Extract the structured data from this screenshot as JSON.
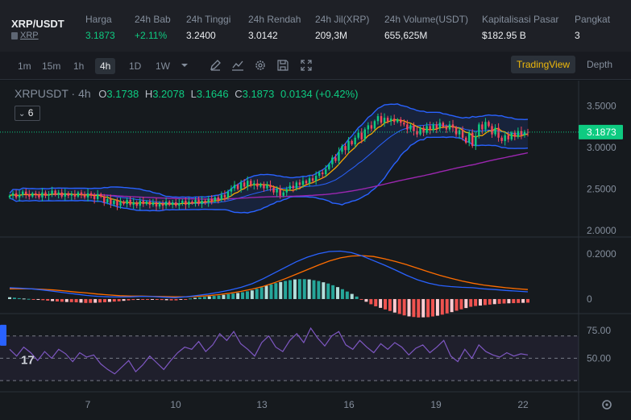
{
  "ticker": {
    "pair": "XRP/USDT",
    "base": "XRP",
    "stats": [
      {
        "label": "Harga",
        "value": "3.1873",
        "color": "green"
      },
      {
        "label": "24h Bab",
        "value": "+2.11%",
        "color": "green"
      },
      {
        "label": "24h Tinggi",
        "value": "3.2400"
      },
      {
        "label": "24h Rendah",
        "value": "3.0142"
      },
      {
        "label": "24h Jil(XRP)",
        "value": "209,3M"
      },
      {
        "label": "24h Volume(USDT)",
        "value": "655,625M"
      },
      {
        "label": "Kapitalisasi Pasar",
        "value": "$182.95 B"
      },
      {
        "label": "Pangkat",
        "value": "3"
      }
    ]
  },
  "toolbar": {
    "timeframes": [
      "1m",
      "15m",
      "1h",
      "4h",
      "1D",
      "1W"
    ],
    "active_timeframe": "4h",
    "icons": [
      "chevron-down-icon",
      "pencil-icon",
      "line-chart-icon",
      "gear-icon",
      "save-icon",
      "expand-icon"
    ],
    "tradingview_label": "TradingView",
    "depth_label": "Depth"
  },
  "legend": {
    "symbol": "XRPUSDT · 4h",
    "open_key": "O",
    "open": "3.1738",
    "high_key": "H",
    "high": "3.2078",
    "low_key": "L",
    "low": "3.1646",
    "close_key": "C",
    "close": "3.1873",
    "change": "0.0134 (+0.42%)",
    "indicator_count": "6"
  },
  "chart_data": [
    {
      "type": "candlestick",
      "title": "XRPUSDT · 4h",
      "y_ticks": [
        "3.5000",
        "3.0000",
        "2.5000",
        "2.0000"
      ],
      "ylim": [
        2.0,
        3.75
      ],
      "last_price": "3.1873",
      "x_ticks": [
        "7",
        "10",
        "13",
        "16",
        "19",
        "22"
      ],
      "close": [
        2.42,
        2.45,
        2.4,
        2.43,
        2.47,
        2.44,
        2.41,
        2.45,
        2.43,
        2.4,
        2.46,
        2.42,
        2.44,
        2.48,
        2.43,
        2.46,
        2.41,
        2.45,
        2.42,
        2.44,
        2.41,
        2.46,
        2.43,
        2.4,
        2.45,
        2.42,
        2.38,
        2.44,
        2.41,
        2.34,
        2.38,
        2.32,
        2.36,
        2.3,
        2.35,
        2.32,
        2.37,
        2.31,
        2.34,
        2.3,
        2.36,
        2.32,
        2.35,
        2.31,
        2.34,
        2.29,
        2.33,
        2.3,
        2.35,
        2.31,
        2.34,
        2.3,
        2.33,
        2.36,
        2.31,
        2.35,
        2.33,
        2.37,
        2.32,
        2.36,
        2.34,
        2.38,
        2.35,
        2.4,
        2.37,
        2.43,
        2.4,
        2.47,
        2.51,
        2.55,
        2.5,
        2.58,
        2.53,
        2.6,
        2.55,
        2.57,
        2.53,
        2.56,
        2.51,
        2.55,
        2.52,
        2.46,
        2.5,
        2.42,
        2.46,
        2.5,
        2.54,
        2.51,
        2.58,
        2.55,
        2.6,
        2.57,
        2.63,
        2.6,
        2.66,
        2.7,
        2.68,
        2.74,
        2.8,
        2.88,
        2.84,
        2.95,
        3.02,
        2.97,
        3.08,
        3.04,
        3.12,
        3.18,
        3.1,
        3.22,
        3.27,
        3.23,
        3.32,
        3.38,
        3.3,
        3.36,
        3.32,
        3.35,
        3.31,
        3.34,
        3.3,
        3.28,
        3.22,
        3.27,
        3.2,
        3.16,
        3.24,
        3.18,
        3.26,
        3.21,
        3.28,
        3.23,
        3.3,
        3.25,
        3.22,
        3.28,
        3.24,
        3.16,
        3.21,
        3.12,
        3.06,
        3.18,
        3.02,
        3.14,
        3.28,
        3.22,
        3.31,
        3.26,
        3.16,
        3.24,
        3.12,
        3.08,
        3.15,
        3.1,
        3.18,
        3.13,
        3.2,
        3.15,
        3.19,
        3.1873
      ],
      "indicators": [
        "Bollinger Bands",
        "MA",
        "MA"
      ]
    },
    {
      "type": "line",
      "title": "MACD",
      "y_ticks": [
        "0.2000",
        "0"
      ],
      "ylim": [
        -0.05,
        0.26
      ],
      "macd": [
        0.05,
        0.048,
        0.045,
        0.04,
        0.034,
        0.028,
        0.022,
        0.016,
        0.012,
        0.01,
        0.009,
        0.01,
        0.012,
        0.011,
        0.008,
        0.006,
        0.01,
        0.016,
        0.022,
        0.03,
        0.04,
        0.052,
        0.068,
        0.09,
        0.115,
        0.14,
        0.165,
        0.185,
        0.2,
        0.21,
        0.212,
        0.205,
        0.19,
        0.17,
        0.15,
        0.128,
        0.105,
        0.085,
        0.07,
        0.06,
        0.055,
        0.052,
        0.05,
        0.045,
        0.042,
        0.038,
        0.035,
        0.032
      ],
      "signal": [
        0.045,
        0.046,
        0.045,
        0.043,
        0.04,
        0.036,
        0.031,
        0.027,
        0.022,
        0.018,
        0.015,
        0.013,
        0.013,
        0.012,
        0.011,
        0.01,
        0.01,
        0.012,
        0.015,
        0.02,
        0.026,
        0.034,
        0.044,
        0.056,
        0.072,
        0.09,
        0.11,
        0.13,
        0.15,
        0.168,
        0.182,
        0.19,
        0.192,
        0.188,
        0.178,
        0.166,
        0.152,
        0.136,
        0.12,
        0.105,
        0.092,
        0.08,
        0.07,
        0.062,
        0.056,
        0.05,
        0.046,
        0.042
      ]
    },
    {
      "type": "line",
      "title": "RSI",
      "y_ticks": [
        "75.00",
        "50.00"
      ],
      "ylim": [
        20,
        90
      ],
      "rsi": [
        58,
        52,
        60,
        55,
        48,
        56,
        50,
        58,
        54,
        47,
        55,
        51,
        53,
        45,
        40,
        36,
        42,
        48,
        38,
        44,
        52,
        46,
        40,
        48,
        55,
        60,
        58,
        65,
        56,
        62,
        72,
        66,
        74,
        63,
        58,
        52,
        64,
        70,
        60,
        56,
        66,
        72,
        64,
        77,
        68,
        61,
        70,
        74,
        62,
        58,
        66,
        60,
        55,
        63,
        58,
        64,
        60,
        53,
        59,
        62,
        55,
        60,
        66,
        52,
        47,
        58,
        50,
        62,
        56,
        53,
        51,
        55,
        52,
        54,
        53
      ]
    }
  ]
}
